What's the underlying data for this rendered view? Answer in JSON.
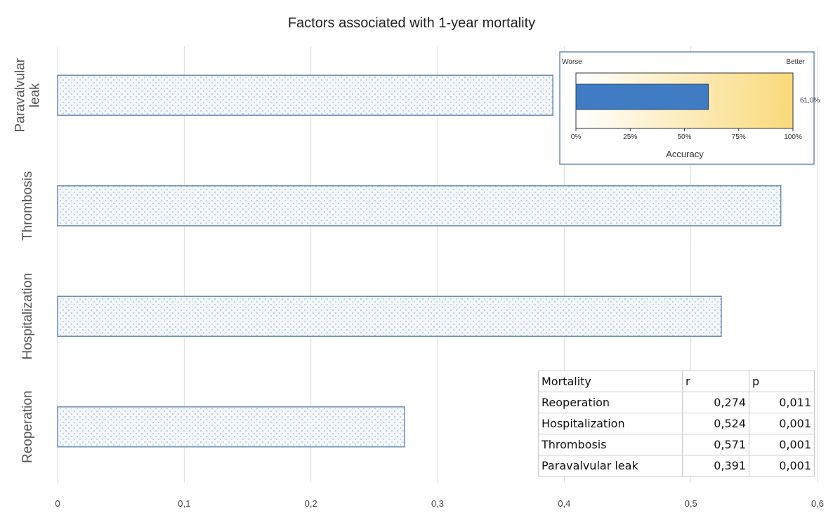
{
  "chart_data": [
    {
      "type": "bar",
      "orientation": "horizontal",
      "title": "Factors associated with 1-year mortality",
      "categories": [
        "Reoperation",
        "Hospitalization",
        "Thrombosis",
        "Paravalvular leak"
      ],
      "category_display": [
        "Reoperation",
        "Hospitalization",
        "Thrombosis",
        "Paravalvular\nleak"
      ],
      "values": [
        0.274,
        0.524,
        0.571,
        0.391
      ],
      "xlim": [
        0,
        0.6
      ],
      "xticks": [
        "0",
        "0,1",
        "0,2",
        "0,3",
        "0,4",
        "0,5",
        "0,6"
      ],
      "grid": "vertical",
      "bar_fill": "dotted light blue",
      "bar_color": "#6b8fb3"
    },
    {
      "type": "bar",
      "orientation": "horizontal",
      "label_left": "Worse",
      "label_right": "Better",
      "xlabel": "Accuracy",
      "value": 61.0,
      "value_label": "61,0%",
      "xlim": [
        0,
        100
      ],
      "xticks": [
        "0%",
        "25%",
        "50%",
        "75%",
        "100%"
      ],
      "bar_color": "#3f7cc4",
      "gradient": [
        "#ffffff",
        "#f9d97a"
      ]
    }
  ],
  "table": {
    "headers": [
      "Mortality",
      "r",
      "p"
    ],
    "rows": [
      [
        "Reoperation",
        "0,274",
        "0,011"
      ],
      [
        "Hospitalization",
        "0,524",
        "0,001"
      ],
      [
        "Thrombosis",
        "0,571",
        "0,001"
      ],
      [
        "Paravalvular leak",
        "0,391",
        "0,001"
      ]
    ]
  }
}
